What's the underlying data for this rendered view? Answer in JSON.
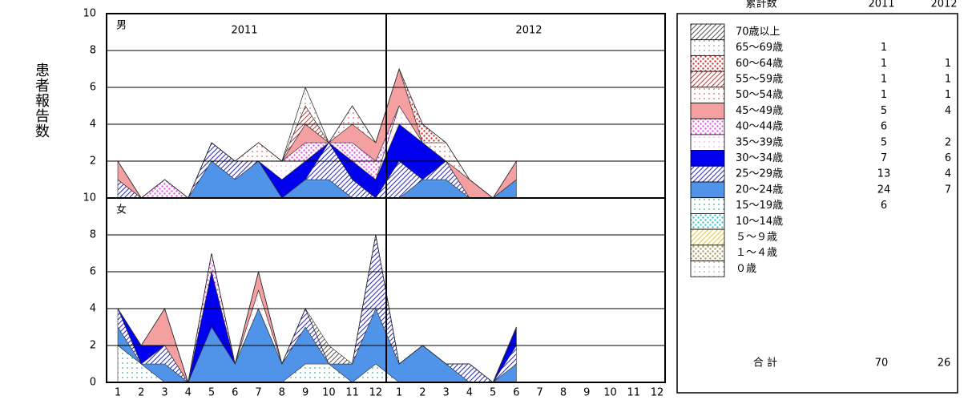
{
  "chart_data": {
    "type": "stacked_area",
    "y_label": "患者報告数",
    "categories": [
      "1",
      "2",
      "3",
      "4",
      "5",
      "6",
      "7",
      "8",
      "9",
      "10",
      "11",
      "12",
      "1",
      "2",
      "3",
      "4",
      "5",
      "6",
      "7",
      "8",
      "9",
      "10",
      "11",
      "12"
    ],
    "years": [
      "2011",
      "2012"
    ],
    "ylim": [
      0,
      10
    ],
    "yticks": [
      0,
      2,
      4,
      6,
      8,
      10
    ],
    "series": [
      {
        "name": "70歳以上",
        "color": "#555555",
        "pattern": "hatch"
      },
      {
        "name": "65～69歳",
        "color": "#999999",
        "pattern": "dots"
      },
      {
        "name": "60～64歳",
        "color": "#e03030",
        "pattern": "dense"
      },
      {
        "name": "55～59歳",
        "color": "#e03030",
        "pattern": "hatch"
      },
      {
        "name": "50～54歳",
        "color": "#e06060",
        "pattern": "dots"
      },
      {
        "name": "45～49歳",
        "color": "#f4a0a0",
        "pattern": "solid"
      },
      {
        "name": "40～44歳",
        "color": "#ee55ee",
        "pattern": "dense"
      },
      {
        "name": "35～39歳",
        "color": "#ffaaff",
        "pattern": "dots"
      },
      {
        "name": "30～34歳",
        "color": "#0000ee",
        "pattern": "solid"
      },
      {
        "name": "25～29歳",
        "color": "#2222ee",
        "pattern": "hatch"
      },
      {
        "name": "20～24歳",
        "color": "#4f94e8",
        "pattern": "solid"
      },
      {
        "name": "15～19歳",
        "color": "#33aaaa",
        "pattern": "dots"
      },
      {
        "name": "10～14歳",
        "color": "#33cccc",
        "pattern": "dense"
      },
      {
        "name": "５～９歳",
        "color": "#eecc00",
        "pattern": "hatch"
      },
      {
        "name": "１～４歳",
        "color": "#aa9955",
        "pattern": "dense"
      },
      {
        "name": "０歳",
        "color": "#aaaaaa",
        "pattern": "dots"
      }
    ],
    "panels": [
      {
        "label": "男",
        "values": [
          [
            0,
            0,
            0,
            0,
            0,
            0,
            0,
            0,
            0,
            0,
            0,
            0,
            0,
            0,
            0,
            0,
            0,
            0,
            null,
            null,
            null,
            null,
            null,
            null
          ],
          [
            0,
            0,
            0,
            0,
            0,
            0,
            0,
            0,
            1,
            0,
            0,
            0,
            0,
            0,
            0,
            0,
            0,
            0,
            null,
            null,
            null,
            null,
            null,
            null
          ],
          [
            0,
            0,
            0,
            0,
            0,
            0,
            0,
            0,
            0,
            0,
            0,
            0,
            0,
            1,
            0,
            0,
            0,
            0,
            null,
            null,
            null,
            null,
            null,
            null
          ],
          [
            0,
            0,
            0,
            0,
            0,
            0,
            0,
            0,
            1,
            0,
            0,
            0,
            0,
            0,
            0,
            0,
            0,
            0,
            null,
            null,
            null,
            null,
            null,
            null
          ],
          [
            0,
            0,
            0,
            0,
            0,
            0,
            1,
            0,
            0,
            0,
            1,
            0,
            0,
            0,
            1,
            0,
            0,
            0,
            null,
            null,
            null,
            null,
            null,
            null
          ],
          [
            1,
            0,
            0,
            0,
            0,
            0,
            0,
            0,
            1,
            0,
            1,
            1,
            2,
            0,
            0,
            1,
            0,
            1,
            null,
            null,
            null,
            null,
            null,
            null
          ],
          [
            0,
            0,
            1,
            0,
            0,
            0,
            0,
            0,
            1,
            0,
            1,
            1,
            0,
            0,
            0,
            0,
            0,
            0,
            null,
            null,
            null,
            null,
            null,
            null
          ],
          [
            0,
            0,
            0,
            0,
            0,
            0,
            0,
            1,
            0,
            0,
            0,
            0,
            1,
            0,
            0,
            0,
            0,
            0,
            null,
            null,
            null,
            null,
            null,
            null
          ],
          [
            0,
            0,
            0,
            0,
            0,
            0,
            0,
            1,
            1,
            0,
            1,
            1,
            2,
            2,
            0,
            0,
            0,
            0,
            null,
            null,
            null,
            null,
            null,
            null
          ],
          [
            1,
            0,
            0,
            0,
            1,
            1,
            0,
            0,
            0,
            2,
            1,
            0,
            2,
            0,
            1,
            0,
            0,
            0,
            null,
            null,
            null,
            null,
            null,
            null
          ],
          [
            0,
            0,
            0,
            0,
            2,
            1,
            2,
            0,
            1,
            1,
            0,
            0,
            0,
            1,
            1,
            0,
            0,
            1,
            null,
            null,
            null,
            null,
            null,
            null
          ],
          [
            0,
            0,
            0,
            0,
            0,
            0,
            0,
            0,
            0,
            0,
            0,
            0,
            0,
            0,
            0,
            0,
            0,
            0,
            null,
            null,
            null,
            null,
            null,
            null
          ],
          [
            0,
            0,
            0,
            0,
            0,
            0,
            0,
            0,
            0,
            0,
            0,
            0,
            0,
            0,
            0,
            0,
            0,
            0,
            null,
            null,
            null,
            null,
            null,
            null
          ],
          [
            0,
            0,
            0,
            0,
            0,
            0,
            0,
            0,
            0,
            0,
            0,
            0,
            0,
            0,
            0,
            0,
            0,
            0,
            null,
            null,
            null,
            null,
            null,
            null
          ],
          [
            0,
            0,
            0,
            0,
            0,
            0,
            0,
            0,
            0,
            0,
            0,
            0,
            0,
            0,
            0,
            0,
            0,
            0,
            null,
            null,
            null,
            null,
            null,
            null
          ],
          [
            0,
            0,
            0,
            0,
            0,
            0,
            0,
            0,
            0,
            0,
            0,
            0,
            0,
            0,
            0,
            0,
            0,
            0,
            null,
            null,
            null,
            null,
            null,
            null
          ]
        ]
      },
      {
        "label": "女",
        "values": [
          [
            0,
            0,
            0,
            0,
            0,
            0,
            0,
            0,
            0,
            1,
            0,
            0,
            0,
            0,
            0,
            0,
            0,
            0,
            null,
            null,
            null,
            null,
            null,
            null
          ],
          [
            0,
            0,
            0,
            0,
            0,
            0,
            0,
            0,
            0,
            0,
            0,
            0,
            0,
            0,
            0,
            0,
            0,
            0,
            null,
            null,
            null,
            null,
            null,
            null
          ],
          [
            0,
            0,
            0,
            0,
            0,
            0,
            0,
            0,
            0,
            0,
            0,
            0,
            0,
            0,
            0,
            0,
            0,
            0,
            null,
            null,
            null,
            null,
            null,
            null
          ],
          [
            0,
            0,
            0,
            0,
            0,
            0,
            0,
            0,
            0,
            0,
            0,
            0,
            0,
            0,
            0,
            0,
            0,
            0,
            null,
            null,
            null,
            null,
            null,
            null
          ],
          [
            0,
            0,
            0,
            0,
            0,
            0,
            0,
            0,
            0,
            0,
            0,
            0,
            0,
            0,
            0,
            0,
            0,
            0,
            null,
            null,
            null,
            null,
            null,
            null
          ],
          [
            0,
            0,
            2,
            0,
            0,
            0,
            1,
            0,
            0,
            0,
            0,
            0,
            0,
            0,
            0,
            0,
            0,
            0,
            null,
            null,
            null,
            null,
            null,
            null
          ],
          [
            0,
            0,
            0,
            0,
            1,
            0,
            0,
            0,
            0,
            0,
            0,
            0,
            0,
            0,
            0,
            0,
            0,
            0,
            null,
            null,
            null,
            null,
            null,
            null
          ],
          [
            0,
            0,
            0,
            0,
            0,
            0,
            1,
            0,
            0,
            0,
            0,
            0,
            0,
            0,
            0,
            0,
            0,
            0,
            null,
            null,
            null,
            null,
            null,
            null
          ],
          [
            0,
            1,
            0,
            0,
            3,
            0,
            0,
            0,
            0,
            0,
            0,
            0,
            0,
            0,
            0,
            0,
            0,
            1,
            null,
            null,
            null,
            null,
            null,
            null
          ],
          [
            1,
            0,
            1,
            0,
            0,
            0,
            0,
            0,
            1,
            0,
            0,
            4,
            0,
            0,
            0,
            1,
            0,
            1,
            null,
            null,
            null,
            null,
            null,
            null
          ],
          [
            1,
            0,
            1,
            0,
            3,
            1,
            4,
            1,
            2,
            0,
            1,
            3,
            1,
            2,
            1,
            0,
            0,
            1,
            null,
            null,
            null,
            null,
            null,
            null
          ],
          [
            2,
            1,
            0,
            0,
            0,
            0,
            0,
            0,
            1,
            1,
            0,
            1,
            0,
            0,
            0,
            0,
            0,
            0,
            null,
            null,
            null,
            null,
            null,
            null
          ],
          [
            0,
            0,
            0,
            0,
            0,
            0,
            0,
            0,
            0,
            0,
            0,
            0,
            0,
            0,
            0,
            0,
            0,
            0,
            null,
            null,
            null,
            null,
            null,
            null
          ],
          [
            0,
            0,
            0,
            0,
            0,
            0,
            0,
            0,
            0,
            0,
            0,
            0,
            0,
            0,
            0,
            0,
            0,
            0,
            null,
            null,
            null,
            null,
            null,
            null
          ],
          [
            0,
            0,
            0,
            0,
            0,
            0,
            0,
            0,
            0,
            0,
            0,
            0,
            0,
            0,
            0,
            0,
            0,
            0,
            null,
            null,
            null,
            null,
            null,
            null
          ],
          [
            0,
            0,
            0,
            0,
            0,
            0,
            0,
            0,
            0,
            0,
            0,
            0,
            0,
            0,
            0,
            0,
            0,
            0,
            null,
            null,
            null,
            null,
            null,
            null
          ]
        ]
      }
    ],
    "cumulative": {
      "title": "累計数",
      "columns": [
        "2011",
        "2012"
      ],
      "values": [
        [
          null,
          null
        ],
        [
          1,
          null
        ],
        [
          1,
          1
        ],
        [
          1,
          1
        ],
        [
          1,
          1
        ],
        [
          5,
          4
        ],
        [
          6,
          null
        ],
        [
          5,
          2
        ],
        [
          7,
          6
        ],
        [
          13,
          4
        ],
        [
          24,
          7
        ],
        [
          6,
          null
        ],
        [
          null,
          null
        ],
        [
          null,
          null
        ],
        [
          null,
          null
        ],
        [
          null,
          null
        ]
      ],
      "total_label": "合 計",
      "totals": [
        70,
        26
      ]
    }
  }
}
